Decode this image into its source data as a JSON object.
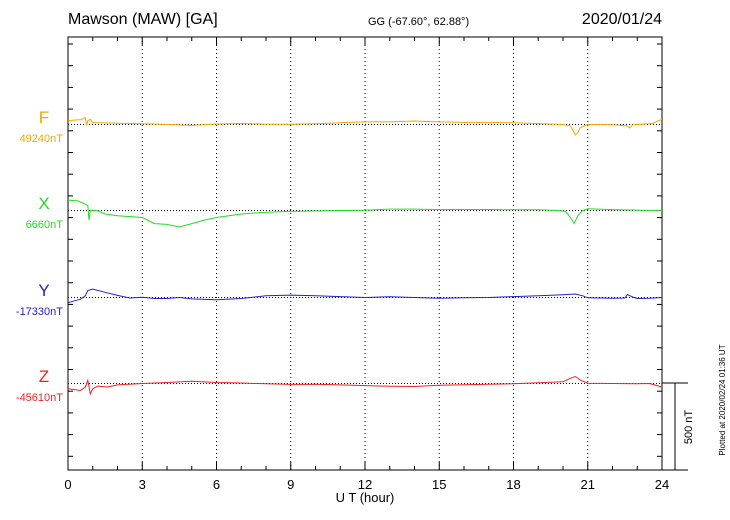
{
  "header": {
    "station": "Mawson (MAW)  [GA]",
    "coords": "GG (-67.60°,  62.88°)",
    "date": "2020/01/24"
  },
  "plot_note": "Plotted at 2020/02/24 01:36 UT",
  "chart_data": {
    "type": "line",
    "xlabel": "U T (hour)",
    "xlim": [
      0,
      24
    ],
    "xticks": [
      0,
      3,
      6,
      9,
      12,
      15,
      18,
      21,
      24
    ],
    "grid": "vertical dotted lines every 3 hours",
    "scale_bar": {
      "label": "500 nT",
      "value_nT": 500
    },
    "series": [
      {
        "name": "F",
        "baseline_label": "49240nT",
        "color": "#f0a800",
        "points": [
          [
            0,
            49262
          ],
          [
            0.3,
            49266
          ],
          [
            0.55,
            49268
          ],
          [
            0.7,
            49280
          ],
          [
            0.75,
            49235
          ],
          [
            0.8,
            49262
          ],
          [
            0.9,
            49270
          ],
          [
            1.0,
            49250
          ],
          [
            1.3,
            49250
          ],
          [
            2,
            49247
          ],
          [
            3,
            49244
          ],
          [
            4,
            49240
          ],
          [
            5,
            49235
          ],
          [
            6,
            49243
          ],
          [
            7,
            49246
          ],
          [
            8,
            49242
          ],
          [
            9,
            49241
          ],
          [
            10,
            49244
          ],
          [
            11,
            49250
          ],
          [
            12,
            49255
          ],
          [
            13,
            49255
          ],
          [
            14,
            49260
          ],
          [
            15,
            49255
          ],
          [
            16,
            49252
          ],
          [
            17,
            49252
          ],
          [
            18,
            49250
          ],
          [
            19,
            49245
          ],
          [
            20,
            49240
          ],
          [
            20.3,
            49232
          ],
          [
            20.5,
            49180
          ],
          [
            20.6,
            49195
          ],
          [
            20.7,
            49222
          ],
          [
            21,
            49240
          ],
          [
            22,
            49238
          ],
          [
            22.6,
            49232
          ],
          [
            22.7,
            49220
          ],
          [
            22.8,
            49238
          ],
          [
            23,
            49240
          ],
          [
            23.6,
            49245
          ],
          [
            24,
            49270
          ]
        ]
      },
      {
        "name": "X",
        "baseline_label": "6660nT",
        "color": "#22dd22",
        "points": [
          [
            0,
            6720
          ],
          [
            0.4,
            6715
          ],
          [
            0.8,
            6690
          ],
          [
            0.85,
            6605
          ],
          [
            0.9,
            6662
          ],
          [
            1.2,
            6658
          ],
          [
            1.5,
            6640
          ],
          [
            2,
            6630
          ],
          [
            3,
            6620
          ],
          [
            3.5,
            6585
          ],
          [
            4,
            6580
          ],
          [
            4.5,
            6565
          ],
          [
            5,
            6585
          ],
          [
            5.5,
            6605
          ],
          [
            6,
            6620
          ],
          [
            7,
            6640
          ],
          [
            8,
            6650
          ],
          [
            9,
            6655
          ],
          [
            10,
            6657
          ],
          [
            11,
            6660
          ],
          [
            12,
            6662
          ],
          [
            13,
            6668
          ],
          [
            14,
            6668
          ],
          [
            15,
            6665
          ],
          [
            16,
            6666
          ],
          [
            17,
            6666
          ],
          [
            18,
            6664
          ],
          [
            19,
            6664
          ],
          [
            19.8,
            6660
          ],
          [
            20.1,
            6655
          ],
          [
            20.3,
            6620
          ],
          [
            20.45,
            6585
          ],
          [
            20.6,
            6630
          ],
          [
            20.8,
            6660
          ],
          [
            21,
            6670
          ],
          [
            22,
            6665
          ],
          [
            23,
            6662
          ],
          [
            24,
            6660
          ]
        ]
      },
      {
        "name": "Y",
        "baseline_label": "-17330nT",
        "color": "#2222cc",
        "points": [
          [
            0,
            -17360
          ],
          [
            0.5,
            -17340
          ],
          [
            0.7,
            -17320
          ],
          [
            0.8,
            -17290
          ],
          [
            1.0,
            -17282
          ],
          [
            1.5,
            -17300
          ],
          [
            2,
            -17318
          ],
          [
            2.5,
            -17333
          ],
          [
            3,
            -17328
          ],
          [
            3.5,
            -17336
          ],
          [
            4,
            -17336
          ],
          [
            4.5,
            -17330
          ],
          [
            5,
            -17338
          ],
          [
            6,
            -17343
          ],
          [
            7,
            -17336
          ],
          [
            8,
            -17320
          ],
          [
            9,
            -17316
          ],
          [
            10,
            -17320
          ],
          [
            11,
            -17325
          ],
          [
            12,
            -17330
          ],
          [
            13,
            -17326
          ],
          [
            14,
            -17330
          ],
          [
            15,
            -17334
          ],
          [
            16,
            -17332
          ],
          [
            17,
            -17330
          ],
          [
            18,
            -17325
          ],
          [
            19,
            -17320
          ],
          [
            20,
            -17314
          ],
          [
            20.5,
            -17310
          ],
          [
            20.8,
            -17320
          ],
          [
            21,
            -17332
          ],
          [
            22,
            -17334
          ],
          [
            22.5,
            -17333
          ],
          [
            22.6,
            -17313
          ],
          [
            22.8,
            -17326
          ],
          [
            23,
            -17336
          ],
          [
            23.5,
            -17334
          ],
          [
            24,
            -17330
          ]
        ]
      },
      {
        "name": "Z",
        "baseline_label": "-45610nT",
        "color": "#ee2222",
        "points": [
          [
            0,
            -45640
          ],
          [
            0.5,
            -45650
          ],
          [
            0.7,
            -45630
          ],
          [
            0.8,
            -45592
          ],
          [
            0.9,
            -45670
          ],
          [
            1.0,
            -45640
          ],
          [
            1.2,
            -45625
          ],
          [
            1.6,
            -45630
          ],
          [
            2,
            -45618
          ],
          [
            3,
            -45610
          ],
          [
            4,
            -45604
          ],
          [
            5,
            -45597
          ],
          [
            6,
            -45604
          ],
          [
            7,
            -45607
          ],
          [
            8,
            -45612
          ],
          [
            9,
            -45615
          ],
          [
            10,
            -45614
          ],
          [
            11,
            -45618
          ],
          [
            12,
            -45622
          ],
          [
            13,
            -45626
          ],
          [
            14,
            -45627
          ],
          [
            15,
            -45620
          ],
          [
            16,
            -45617
          ],
          [
            17,
            -45614
          ],
          [
            18,
            -45612
          ],
          [
            19,
            -45606
          ],
          [
            20,
            -45600
          ],
          [
            20.3,
            -45580
          ],
          [
            20.5,
            -45570
          ],
          [
            20.7,
            -45590
          ],
          [
            21,
            -45608
          ],
          [
            22,
            -45610
          ],
          [
            23,
            -45612
          ],
          [
            23.5,
            -45610
          ],
          [
            24,
            -45630
          ]
        ]
      }
    ]
  }
}
